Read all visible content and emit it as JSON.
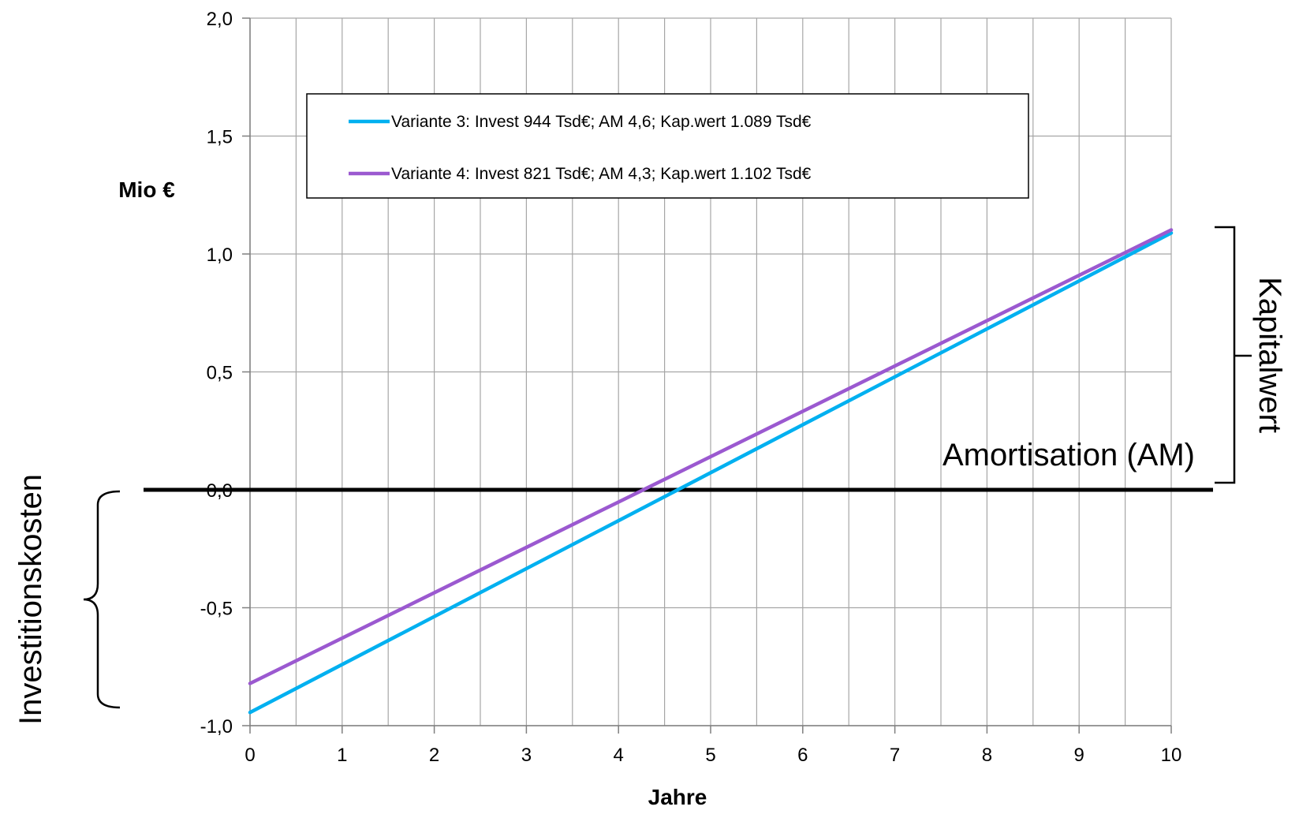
{
  "chart_data": {
    "type": "line",
    "xlabel": "Jahre",
    "ylabel": "Mio €",
    "xlim": [
      0,
      10
    ],
    "ylim": [
      -1.0,
      2.0
    ],
    "x_ticks": [
      "0",
      "1",
      "2",
      "3",
      "4",
      "5",
      "6",
      "7",
      "8",
      "9",
      "10"
    ],
    "y_ticks": [
      "-1,0",
      "-0,5",
      "0,0",
      "0,5",
      "1,0",
      "1,5",
      "2,0"
    ],
    "grid": true,
    "legend_position": "top",
    "series": [
      {
        "name": "Variante 3: Invest 944 Tsd€; AM 4,6; Kap.wert  1.089 Tsd€",
        "color": "#00b0f0",
        "x": [
          0,
          10
        ],
        "y": [
          -0.944,
          1.089
        ]
      },
      {
        "name": "Variante 4: Invest 821 Tsd€; AM 4,3; Kap.wert  1.102 Tsd€",
        "color": "#9b59d0",
        "x": [
          0,
          10
        ],
        "y": [
          -0.821,
          1.102
        ]
      }
    ],
    "annotations": {
      "amortisation": "Amortisation (AM)",
      "kapitalwert": "Kapitalwert",
      "investitionskosten": "Investitionskosten"
    }
  }
}
